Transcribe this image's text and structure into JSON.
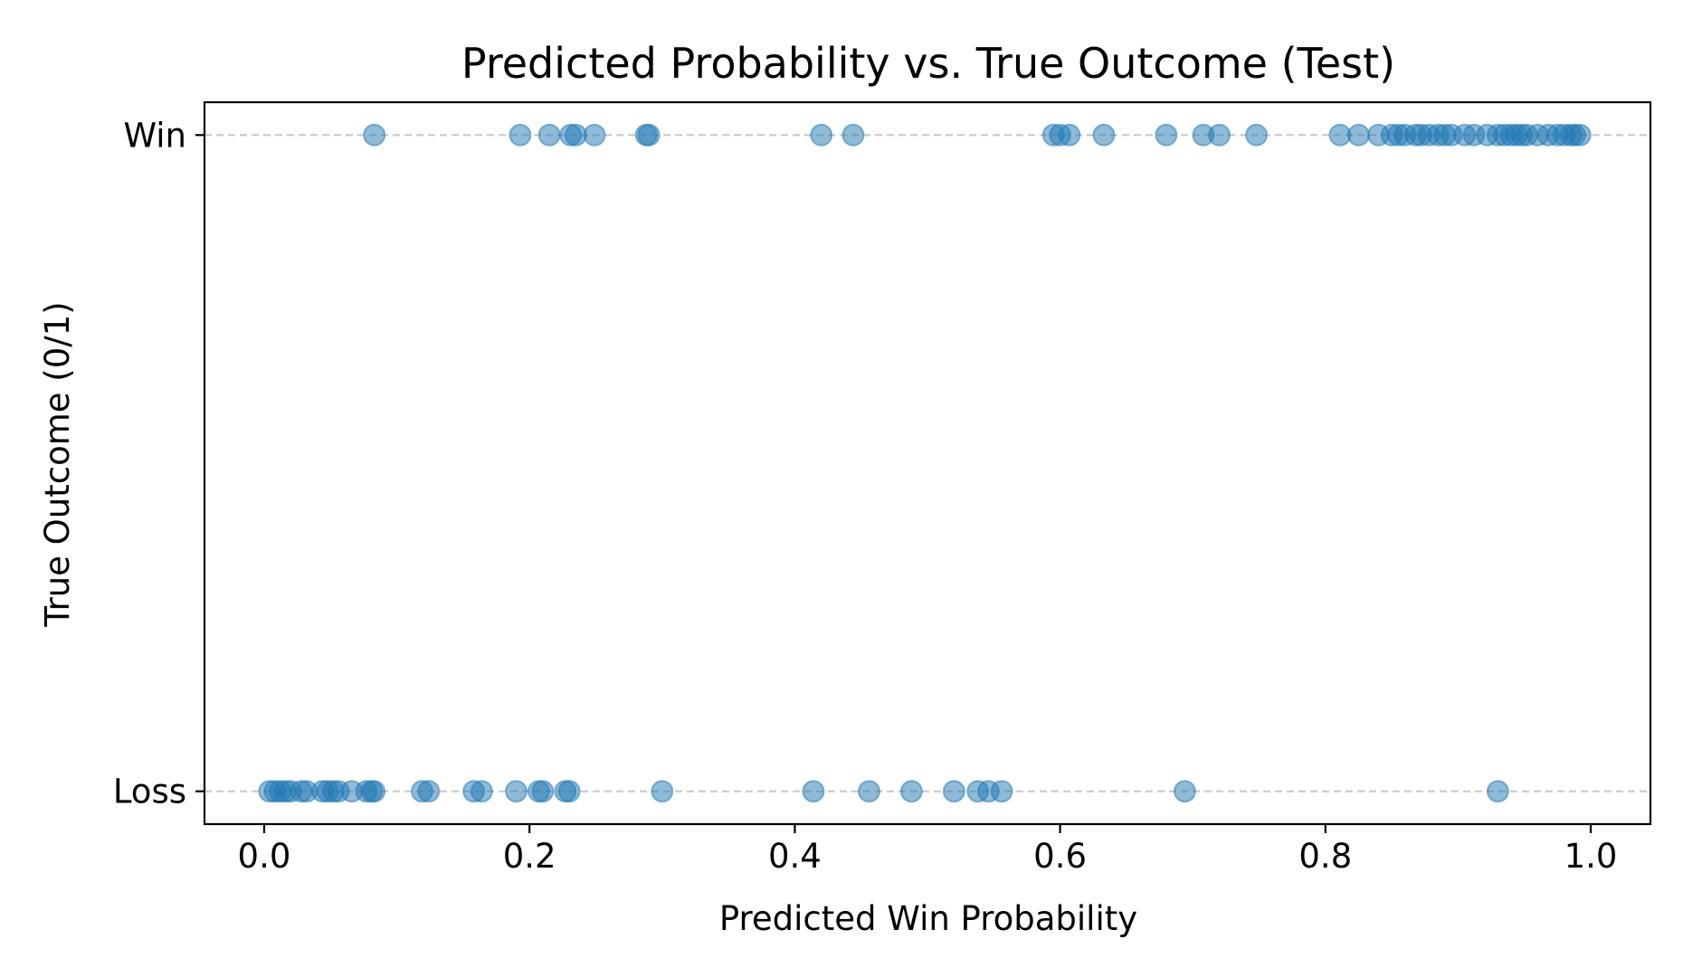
{
  "chart_data": {
    "type": "scatter",
    "title": "Predicted Probability vs. True Outcome (Test)",
    "xlabel": "Predicted Win Probability",
    "ylabel": "True Outcome (0/1)",
    "xlim": [
      -0.045,
      1.045
    ],
    "ylim": [
      -0.05,
      1.05
    ],
    "x_ticks": [
      0.0,
      0.2,
      0.4,
      0.6,
      0.8,
      1.0
    ],
    "x_tick_labels": [
      "0.0",
      "0.2",
      "0.4",
      "0.6",
      "0.8",
      "1.0"
    ],
    "y_ticks": [
      0,
      1
    ],
    "y_tick_labels": [
      "Loss",
      "Win"
    ],
    "grid": "horizontal dashed lines at y ticks",
    "legend": "none",
    "marker_color": "#1f77b4",
    "marker_alpha": 0.5,
    "grid_color": "#cccccc",
    "series": [
      {
        "outcome": 1,
        "x": [
          0.083,
          0.193,
          0.215,
          0.231,
          0.235,
          0.249,
          0.288,
          0.29,
          0.42,
          0.444,
          0.595,
          0.6,
          0.607,
          0.633,
          0.68,
          0.708,
          0.72,
          0.748,
          0.811,
          0.825,
          0.84,
          0.85,
          0.855,
          0.86,
          0.868,
          0.872,
          0.878,
          0.885,
          0.89,
          0.895,
          0.905,
          0.912,
          0.922,
          0.93,
          0.935,
          0.94,
          0.944,
          0.948,
          0.952,
          0.96,
          0.968,
          0.975,
          0.98,
          0.985,
          0.988,
          0.992
        ]
      },
      {
        "outcome": 0,
        "x": [
          0.004,
          0.008,
          0.012,
          0.016,
          0.02,
          0.028,
          0.032,
          0.044,
          0.048,
          0.052,
          0.056,
          0.066,
          0.077,
          0.081,
          0.083,
          0.119,
          0.124,
          0.158,
          0.164,
          0.19,
          0.207,
          0.21,
          0.227,
          0.23,
          0.3,
          0.414,
          0.456,
          0.488,
          0.52,
          0.538,
          0.546,
          0.556,
          0.694,
          0.93
        ]
      }
    ]
  }
}
